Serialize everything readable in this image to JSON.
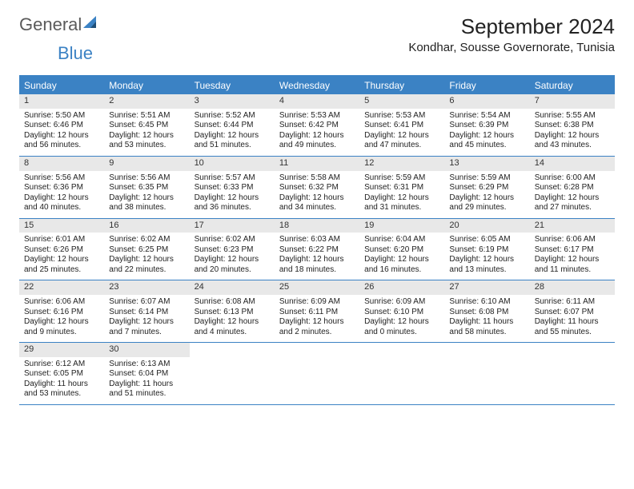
{
  "brand": {
    "part1": "General",
    "part2": "Blue"
  },
  "title": "September 2024",
  "location": "Kondhar, Sousse Governorate, Tunisia",
  "colors": {
    "accent": "#3b82c4",
    "dayHeaderBg": "#3b82c4",
    "dayNumBg": "#e8e8e8",
    "text": "#222222",
    "pageBg": "#ffffff"
  },
  "dayNames": [
    "Sunday",
    "Monday",
    "Tuesday",
    "Wednesday",
    "Thursday",
    "Friday",
    "Saturday"
  ],
  "weeks": [
    [
      {
        "n": "1",
        "sr": "Sunrise: 5:50 AM",
        "ss": "Sunset: 6:46 PM",
        "d1": "Daylight: 12 hours",
        "d2": "and 56 minutes."
      },
      {
        "n": "2",
        "sr": "Sunrise: 5:51 AM",
        "ss": "Sunset: 6:45 PM",
        "d1": "Daylight: 12 hours",
        "d2": "and 53 minutes."
      },
      {
        "n": "3",
        "sr": "Sunrise: 5:52 AM",
        "ss": "Sunset: 6:44 PM",
        "d1": "Daylight: 12 hours",
        "d2": "and 51 minutes."
      },
      {
        "n": "4",
        "sr": "Sunrise: 5:53 AM",
        "ss": "Sunset: 6:42 PM",
        "d1": "Daylight: 12 hours",
        "d2": "and 49 minutes."
      },
      {
        "n": "5",
        "sr": "Sunrise: 5:53 AM",
        "ss": "Sunset: 6:41 PM",
        "d1": "Daylight: 12 hours",
        "d2": "and 47 minutes."
      },
      {
        "n": "6",
        "sr": "Sunrise: 5:54 AM",
        "ss": "Sunset: 6:39 PM",
        "d1": "Daylight: 12 hours",
        "d2": "and 45 minutes."
      },
      {
        "n": "7",
        "sr": "Sunrise: 5:55 AM",
        "ss": "Sunset: 6:38 PM",
        "d1": "Daylight: 12 hours",
        "d2": "and 43 minutes."
      }
    ],
    [
      {
        "n": "8",
        "sr": "Sunrise: 5:56 AM",
        "ss": "Sunset: 6:36 PM",
        "d1": "Daylight: 12 hours",
        "d2": "and 40 minutes."
      },
      {
        "n": "9",
        "sr": "Sunrise: 5:56 AM",
        "ss": "Sunset: 6:35 PM",
        "d1": "Daylight: 12 hours",
        "d2": "and 38 minutes."
      },
      {
        "n": "10",
        "sr": "Sunrise: 5:57 AM",
        "ss": "Sunset: 6:33 PM",
        "d1": "Daylight: 12 hours",
        "d2": "and 36 minutes."
      },
      {
        "n": "11",
        "sr": "Sunrise: 5:58 AM",
        "ss": "Sunset: 6:32 PM",
        "d1": "Daylight: 12 hours",
        "d2": "and 34 minutes."
      },
      {
        "n": "12",
        "sr": "Sunrise: 5:59 AM",
        "ss": "Sunset: 6:31 PM",
        "d1": "Daylight: 12 hours",
        "d2": "and 31 minutes."
      },
      {
        "n": "13",
        "sr": "Sunrise: 5:59 AM",
        "ss": "Sunset: 6:29 PM",
        "d1": "Daylight: 12 hours",
        "d2": "and 29 minutes."
      },
      {
        "n": "14",
        "sr": "Sunrise: 6:00 AM",
        "ss": "Sunset: 6:28 PM",
        "d1": "Daylight: 12 hours",
        "d2": "and 27 minutes."
      }
    ],
    [
      {
        "n": "15",
        "sr": "Sunrise: 6:01 AM",
        "ss": "Sunset: 6:26 PM",
        "d1": "Daylight: 12 hours",
        "d2": "and 25 minutes."
      },
      {
        "n": "16",
        "sr": "Sunrise: 6:02 AM",
        "ss": "Sunset: 6:25 PM",
        "d1": "Daylight: 12 hours",
        "d2": "and 22 minutes."
      },
      {
        "n": "17",
        "sr": "Sunrise: 6:02 AM",
        "ss": "Sunset: 6:23 PM",
        "d1": "Daylight: 12 hours",
        "d2": "and 20 minutes."
      },
      {
        "n": "18",
        "sr": "Sunrise: 6:03 AM",
        "ss": "Sunset: 6:22 PM",
        "d1": "Daylight: 12 hours",
        "d2": "and 18 minutes."
      },
      {
        "n": "19",
        "sr": "Sunrise: 6:04 AM",
        "ss": "Sunset: 6:20 PM",
        "d1": "Daylight: 12 hours",
        "d2": "and 16 minutes."
      },
      {
        "n": "20",
        "sr": "Sunrise: 6:05 AM",
        "ss": "Sunset: 6:19 PM",
        "d1": "Daylight: 12 hours",
        "d2": "and 13 minutes."
      },
      {
        "n": "21",
        "sr": "Sunrise: 6:06 AM",
        "ss": "Sunset: 6:17 PM",
        "d1": "Daylight: 12 hours",
        "d2": "and 11 minutes."
      }
    ],
    [
      {
        "n": "22",
        "sr": "Sunrise: 6:06 AM",
        "ss": "Sunset: 6:16 PM",
        "d1": "Daylight: 12 hours",
        "d2": "and 9 minutes."
      },
      {
        "n": "23",
        "sr": "Sunrise: 6:07 AM",
        "ss": "Sunset: 6:14 PM",
        "d1": "Daylight: 12 hours",
        "d2": "and 7 minutes."
      },
      {
        "n": "24",
        "sr": "Sunrise: 6:08 AM",
        "ss": "Sunset: 6:13 PM",
        "d1": "Daylight: 12 hours",
        "d2": "and 4 minutes."
      },
      {
        "n": "25",
        "sr": "Sunrise: 6:09 AM",
        "ss": "Sunset: 6:11 PM",
        "d1": "Daylight: 12 hours",
        "d2": "and 2 minutes."
      },
      {
        "n": "26",
        "sr": "Sunrise: 6:09 AM",
        "ss": "Sunset: 6:10 PM",
        "d1": "Daylight: 12 hours",
        "d2": "and 0 minutes."
      },
      {
        "n": "27",
        "sr": "Sunrise: 6:10 AM",
        "ss": "Sunset: 6:08 PM",
        "d1": "Daylight: 11 hours",
        "d2": "and 58 minutes."
      },
      {
        "n": "28",
        "sr": "Sunrise: 6:11 AM",
        "ss": "Sunset: 6:07 PM",
        "d1": "Daylight: 11 hours",
        "d2": "and 55 minutes."
      }
    ],
    [
      {
        "n": "29",
        "sr": "Sunrise: 6:12 AM",
        "ss": "Sunset: 6:05 PM",
        "d1": "Daylight: 11 hours",
        "d2": "and 53 minutes."
      },
      {
        "n": "30",
        "sr": "Sunrise: 6:13 AM",
        "ss": "Sunset: 6:04 PM",
        "d1": "Daylight: 11 hours",
        "d2": "and 51 minutes."
      },
      {
        "empty": true
      },
      {
        "empty": true
      },
      {
        "empty": true
      },
      {
        "empty": true
      },
      {
        "empty": true
      }
    ]
  ]
}
